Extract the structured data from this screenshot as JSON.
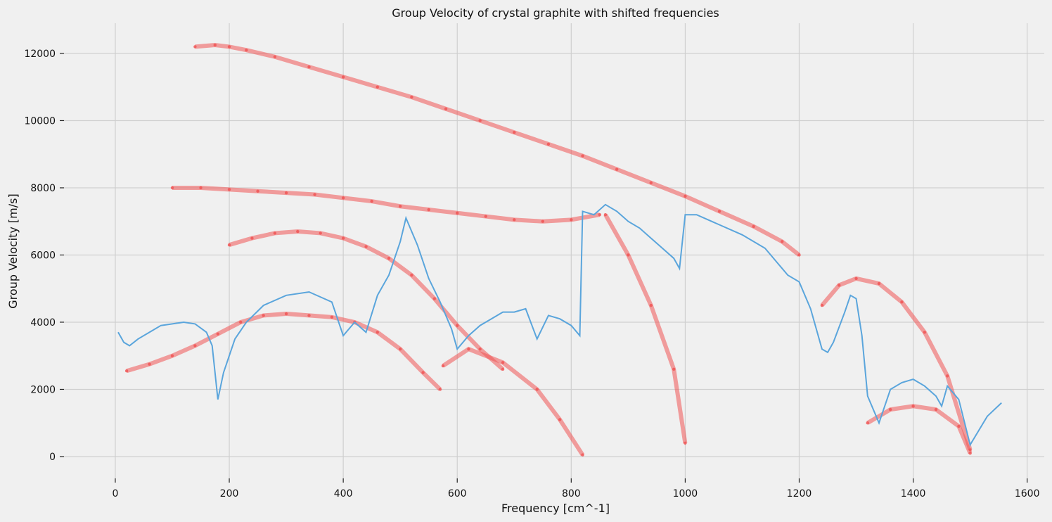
{
  "chart_data": {
    "type": "scatter",
    "title": "Group Velocity of crystal graphite with shifted frequencies",
    "xlabel": "Frequency [cm^-1]",
    "ylabel": "Group Velocity [m/s]",
    "xlim": [
      -90,
      1630
    ],
    "ylim": [
      -650,
      12900
    ],
    "xticks": [
      0,
      200,
      400,
      600,
      800,
      1000,
      1200,
      1400,
      1600
    ],
    "yticks": [
      0,
      2000,
      4000,
      6000,
      8000,
      10000,
      12000
    ],
    "grid": true,
    "colors": {
      "scatter": "#f05555",
      "line": "#5aa5dc",
      "grid": "#cfcfcf",
      "background": "#f0f0f0"
    },
    "series": [
      {
        "kind": "scatter",
        "description_note": "",
        "branches": [
          {
            "x": [
              140,
              175,
              200,
              230,
              280,
              340,
              400,
              460,
              520,
              580,
              640,
              700,
              760,
              820,
              880,
              940,
              1000,
              1060,
              1120,
              1170,
              1200
            ],
            "y": [
              12200,
              12250,
              12200,
              12100,
              11900,
              11600,
              11300,
              11000,
              10700,
              10350,
              10000,
              9650,
              9300,
              8950,
              8550,
              8150,
              7750,
              7300,
              6850,
              6400,
              6000
            ]
          },
          {
            "x": [
              100,
              150,
              200,
              250,
              300,
              350,
              400,
              450,
              500,
              550,
              600,
              650,
              700,
              750,
              800,
              850
            ],
            "y": [
              8000,
              8000,
              7950,
              7900,
              7850,
              7800,
              7700,
              7600,
              7450,
              7350,
              7250,
              7150,
              7050,
              7000,
              7050,
              7200
            ]
          },
          {
            "x": [
              200,
              240,
              280,
              320,
              360,
              400,
              440,
              480,
              520,
              560,
              600,
              640,
              680
            ],
            "y": [
              6300,
              6500,
              6650,
              6700,
              6650,
              6500,
              6250,
              5900,
              5400,
              4700,
              3900,
              3200,
              2600
            ]
          },
          {
            "x": [
              860,
              900,
              940,
              980,
              1000
            ],
            "y": [
              7200,
              6000,
              4500,
              2600,
              400
            ]
          },
          {
            "x": [
              20,
              60,
              100,
              140,
              180,
              220,
              260,
              300,
              340,
              380,
              420,
              460,
              500,
              540,
              570
            ],
            "y": [
              2550,
              2750,
              3000,
              3300,
              3650,
              4000,
              4200,
              4250,
              4200,
              4150,
              4000,
              3700,
              3200,
              2500,
              2000
            ]
          },
          {
            "x": [
              575,
              620,
              680,
              740,
              780,
              820
            ],
            "y": [
              2700,
              3200,
              2800,
              2000,
              1100,
              50
            ]
          },
          {
            "x": [
              1240,
              1270,
              1300,
              1340,
              1380,
              1420,
              1460,
              1500
            ],
            "y": [
              4500,
              5100,
              5300,
              5150,
              4600,
              3700,
              2400,
              200
            ]
          },
          {
            "x": [
              1320,
              1360,
              1400,
              1440,
              1480,
              1500
            ],
            "y": [
              1000,
              1400,
              1500,
              1400,
              900,
              100
            ]
          }
        ]
      },
      {
        "kind": "line",
        "x": [
          5,
          15,
          25,
          40,
          60,
          80,
          100,
          120,
          140,
          160,
          170,
          180,
          190,
          210,
          230,
          260,
          300,
          340,
          380,
          400,
          420,
          440,
          460,
          480,
          500,
          510,
          530,
          550,
          570,
          590,
          600,
          620,
          640,
          660,
          680,
          700,
          720,
          740,
          760,
          780,
          800,
          815,
          820,
          840,
          860,
          880,
          900,
          920,
          940,
          960,
          980,
          990,
          1000,
          1020,
          1060,
          1100,
          1140,
          1160,
          1180,
          1200,
          1220,
          1240,
          1250,
          1260,
          1280,
          1290,
          1300,
          1310,
          1320,
          1340,
          1360,
          1380,
          1400,
          1420,
          1440,
          1450,
          1460,
          1480,
          1500,
          1530,
          1555
        ],
        "y": [
          3700,
          3400,
          3300,
          3500,
          3700,
          3900,
          3950,
          4000,
          3950,
          3700,
          3300,
          1700,
          2500,
          3500,
          4000,
          4500,
          4800,
          4900,
          4600,
          3600,
          4000,
          3700,
          4800,
          5400,
          6400,
          7100,
          6300,
          5300,
          4600,
          3800,
          3200,
          3600,
          3900,
          4100,
          4300,
          4300,
          4400,
          3500,
          4200,
          4100,
          3900,
          3600,
          7300,
          7200,
          7500,
          7300,
          7000,
          6800,
          6500,
          6200,
          5900,
          5600,
          7200,
          7200,
          6900,
          6600,
          6200,
          5800,
          5400,
          5200,
          4400,
          3200,
          3100,
          3400,
          4300,
          4800,
          4700,
          3600,
          1800,
          1000,
          2000,
          2200,
          2300,
          2100,
          1800,
          1500,
          2100,
          1700,
          350,
          1200,
          1600
        ]
      }
    ]
  }
}
